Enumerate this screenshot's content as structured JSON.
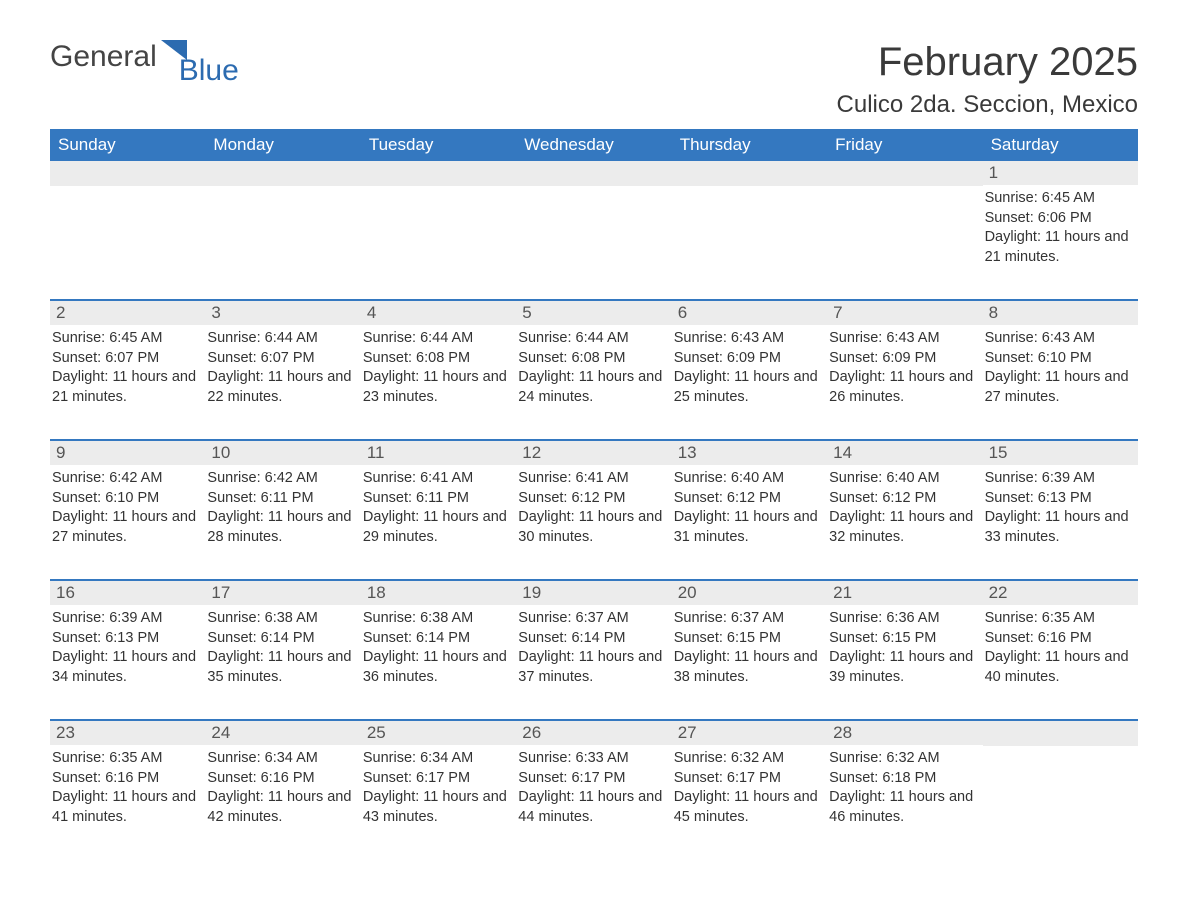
{
  "logo": {
    "text_general": "General",
    "text_blue": "Blue",
    "accent_color": "#2c6bb0"
  },
  "title": "February 2025",
  "location": "Culico 2da. Seccion, Mexico",
  "colors": {
    "header_bg": "#3478c0",
    "header_text": "#ffffff",
    "daynum_bg": "#ececec",
    "border": "#3478c0",
    "body_text": "#333333"
  },
  "day_headers": [
    "Sunday",
    "Monday",
    "Tuesday",
    "Wednesday",
    "Thursday",
    "Friday",
    "Saturday"
  ],
  "weeks": [
    [
      null,
      null,
      null,
      null,
      null,
      null,
      {
        "num": "1",
        "sunrise": "6:45 AM",
        "sunset": "6:06 PM",
        "daylight": "11 hours and 21 minutes."
      }
    ],
    [
      {
        "num": "2",
        "sunrise": "6:45 AM",
        "sunset": "6:07 PM",
        "daylight": "11 hours and 21 minutes."
      },
      {
        "num": "3",
        "sunrise": "6:44 AM",
        "sunset": "6:07 PM",
        "daylight": "11 hours and 22 minutes."
      },
      {
        "num": "4",
        "sunrise": "6:44 AM",
        "sunset": "6:08 PM",
        "daylight": "11 hours and 23 minutes."
      },
      {
        "num": "5",
        "sunrise": "6:44 AM",
        "sunset": "6:08 PM",
        "daylight": "11 hours and 24 minutes."
      },
      {
        "num": "6",
        "sunrise": "6:43 AM",
        "sunset": "6:09 PM",
        "daylight": "11 hours and 25 minutes."
      },
      {
        "num": "7",
        "sunrise": "6:43 AM",
        "sunset": "6:09 PM",
        "daylight": "11 hours and 26 minutes."
      },
      {
        "num": "8",
        "sunrise": "6:43 AM",
        "sunset": "6:10 PM",
        "daylight": "11 hours and 27 minutes."
      }
    ],
    [
      {
        "num": "9",
        "sunrise": "6:42 AM",
        "sunset": "6:10 PM",
        "daylight": "11 hours and 27 minutes."
      },
      {
        "num": "10",
        "sunrise": "6:42 AM",
        "sunset": "6:11 PM",
        "daylight": "11 hours and 28 minutes."
      },
      {
        "num": "11",
        "sunrise": "6:41 AM",
        "sunset": "6:11 PM",
        "daylight": "11 hours and 29 minutes."
      },
      {
        "num": "12",
        "sunrise": "6:41 AM",
        "sunset": "6:12 PM",
        "daylight": "11 hours and 30 minutes."
      },
      {
        "num": "13",
        "sunrise": "6:40 AM",
        "sunset": "6:12 PM",
        "daylight": "11 hours and 31 minutes."
      },
      {
        "num": "14",
        "sunrise": "6:40 AM",
        "sunset": "6:12 PM",
        "daylight": "11 hours and 32 minutes."
      },
      {
        "num": "15",
        "sunrise": "6:39 AM",
        "sunset": "6:13 PM",
        "daylight": "11 hours and 33 minutes."
      }
    ],
    [
      {
        "num": "16",
        "sunrise": "6:39 AM",
        "sunset": "6:13 PM",
        "daylight": "11 hours and 34 minutes."
      },
      {
        "num": "17",
        "sunrise": "6:38 AM",
        "sunset": "6:14 PM",
        "daylight": "11 hours and 35 minutes."
      },
      {
        "num": "18",
        "sunrise": "6:38 AM",
        "sunset": "6:14 PM",
        "daylight": "11 hours and 36 minutes."
      },
      {
        "num": "19",
        "sunrise": "6:37 AM",
        "sunset": "6:14 PM",
        "daylight": "11 hours and 37 minutes."
      },
      {
        "num": "20",
        "sunrise": "6:37 AM",
        "sunset": "6:15 PM",
        "daylight": "11 hours and 38 minutes."
      },
      {
        "num": "21",
        "sunrise": "6:36 AM",
        "sunset": "6:15 PM",
        "daylight": "11 hours and 39 minutes."
      },
      {
        "num": "22",
        "sunrise": "6:35 AM",
        "sunset": "6:16 PM",
        "daylight": "11 hours and 40 minutes."
      }
    ],
    [
      {
        "num": "23",
        "sunrise": "6:35 AM",
        "sunset": "6:16 PM",
        "daylight": "11 hours and 41 minutes."
      },
      {
        "num": "24",
        "sunrise": "6:34 AM",
        "sunset": "6:16 PM",
        "daylight": "11 hours and 42 minutes."
      },
      {
        "num": "25",
        "sunrise": "6:34 AM",
        "sunset": "6:17 PM",
        "daylight": "11 hours and 43 minutes."
      },
      {
        "num": "26",
        "sunrise": "6:33 AM",
        "sunset": "6:17 PM",
        "daylight": "11 hours and 44 minutes."
      },
      {
        "num": "27",
        "sunrise": "6:32 AM",
        "sunset": "6:17 PM",
        "daylight": "11 hours and 45 minutes."
      },
      {
        "num": "28",
        "sunrise": "6:32 AM",
        "sunset": "6:18 PM",
        "daylight": "11 hours and 46 minutes."
      },
      null
    ]
  ],
  "labels": {
    "sunrise": "Sunrise:",
    "sunset": "Sunset:",
    "daylight": "Daylight:"
  }
}
